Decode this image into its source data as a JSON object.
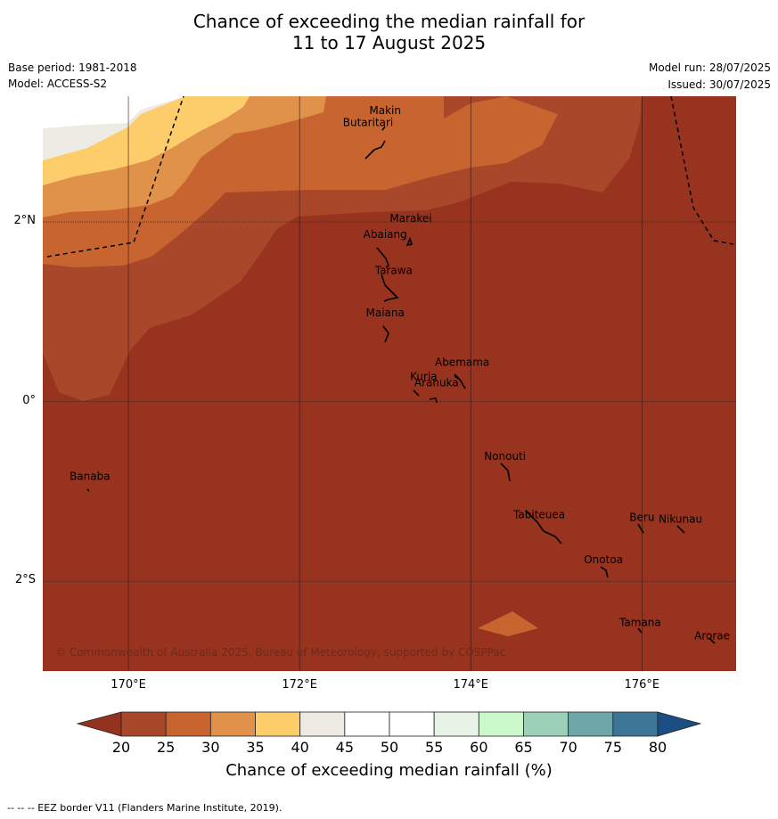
{
  "title_line1": "Chance of exceeding the median rainfall for",
  "title_line2": "11 to 17 August 2025",
  "base_period": "Base period: 1981-2018",
  "model": "Model: ACCESS-S2",
  "model_run": "Model run: 28/07/2025",
  "issued": "Issued: 30/07/2025",
  "copyright": "© Commonwealth of Australia 2025, Bureau of Meteorology, supported by COSPPac",
  "map": {
    "lon_range": [
      169.0,
      177.1
    ],
    "lat_range": [
      -3.0,
      3.4
    ],
    "x_ticks": [
      {
        "lon": 170,
        "label": "170°E"
      },
      {
        "lon": 172,
        "label": "172°E"
      },
      {
        "lon": 174,
        "label": "174°E"
      },
      {
        "lon": 176,
        "label": "176°E"
      }
    ],
    "y_ticks": [
      {
        "lat": 2,
        "label": "2°N"
      },
      {
        "lat": 0,
        "label": "0°"
      },
      {
        "lat": -2,
        "label": "2°S"
      }
    ],
    "places": [
      {
        "name": "Makin",
        "lon": 173.0,
        "lat": 3.2
      },
      {
        "name": "Butaritari",
        "lon": 172.8,
        "lat": 3.07
      },
      {
        "name": "Marakei",
        "lon": 173.3,
        "lat": 2.0
      },
      {
        "name": "Abaiang",
        "lon": 173.0,
        "lat": 1.82
      },
      {
        "name": "Tarawa",
        "lon": 173.1,
        "lat": 1.42
      },
      {
        "name": "Maiana",
        "lon": 173.0,
        "lat": 0.95
      },
      {
        "name": "Abemama",
        "lon": 173.9,
        "lat": 0.4
      },
      {
        "name": "Kuria",
        "lon": 173.45,
        "lat": 0.24
      },
      {
        "name": "Aranuka",
        "lon": 173.6,
        "lat": 0.17
      },
      {
        "name": "Nonouti",
        "lon": 174.4,
        "lat": -0.65
      },
      {
        "name": "Banaba",
        "lon": 169.55,
        "lat": -0.87
      },
      {
        "name": "Tabiteuea",
        "lon": 174.8,
        "lat": -1.3
      },
      {
        "name": "Beru",
        "lon": 176.0,
        "lat": -1.33
      },
      {
        "name": "Nikunau",
        "lon": 176.45,
        "lat": -1.35
      },
      {
        "name": "Onotoa",
        "lon": 175.55,
        "lat": -1.8
      },
      {
        "name": "Tamana",
        "lon": 175.98,
        "lat": -2.5
      },
      {
        "name": "Arorae",
        "lon": 176.82,
        "lat": -2.65
      }
    ]
  },
  "colorbar": {
    "ticks": [
      "20",
      "25",
      "30",
      "35",
      "40",
      "45",
      "50",
      "55",
      "60",
      "65",
      "70",
      "75",
      "80"
    ],
    "colors": [
      "#a8472a",
      "#c8642f",
      "#e0914a",
      "#fdcc6b",
      "#eeebe5",
      "#ffffff",
      "#ffffff",
      "#e8f3e8",
      "#ccf9cc",
      "#9cd0b8",
      "#6fa6a8",
      "#3d7597"
    ],
    "under_color": "#93331f",
    "over_color": "#1b4f84",
    "label": "Chance of exceeding median rainfall (%)"
  },
  "footer": "--  --  -- EEZ border V11 (Flanders Marine Institute, 2019)."
}
